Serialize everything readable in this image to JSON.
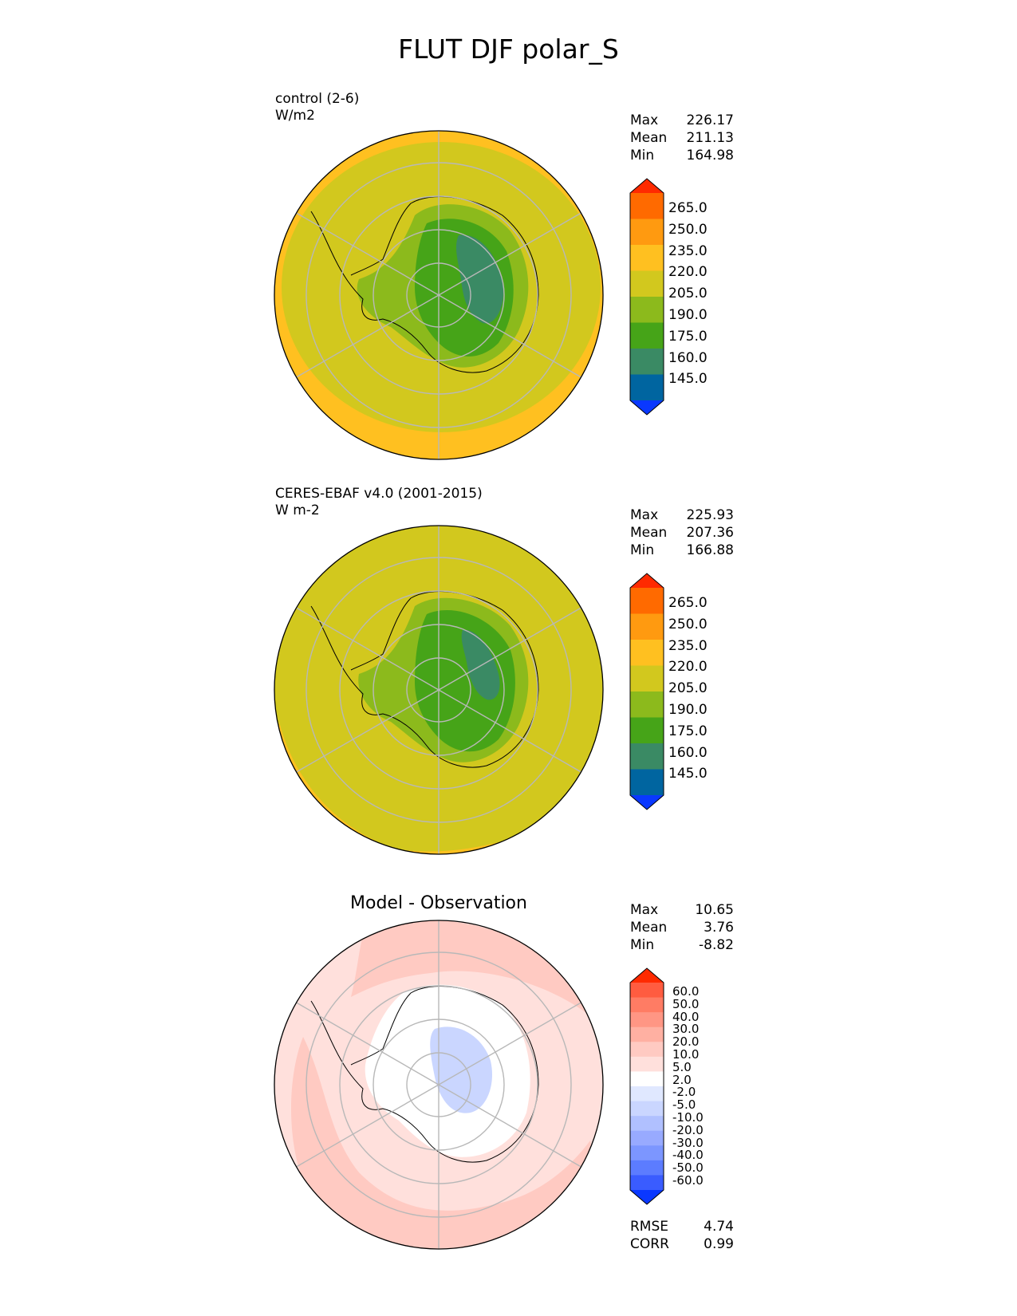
{
  "figure_title": "FLUT DJF polar_S",
  "colors": {
    "abs_levels": [
      "#0a38ff",
      "#0065a0",
      "#3a8a64",
      "#46a418",
      "#8cba1c",
      "#d2c81e",
      "#ffc020",
      "#ff9a10",
      "#ff6a00",
      "#ff2a00"
    ],
    "diff_levels": [
      "#0a38ff",
      "#3a5cff",
      "#5c7cff",
      "#7c96ff",
      "#98aaff",
      "#b0c0ff",
      "#cad6ff",
      "#e0e8ff",
      "#ffffff",
      "#ffe0dc",
      "#ffcac2",
      "#ffb0a2",
      "#ff9684",
      "#ff7c64",
      "#ff5c40",
      "#ff2a00"
    ]
  },
  "chart_data": [
    {
      "type": "heatmap",
      "projection": "polar_south",
      "title": "control (2-6)",
      "units": "W/m2",
      "stats": {
        "max_label": "Max",
        "max": "226.17",
        "mean_label": "Mean",
        "mean": "211.13",
        "min_label": "Min",
        "min": "164.98"
      },
      "levels": [
        145,
        160,
        175,
        190,
        205,
        220,
        235,
        250,
        265
      ],
      "colorbar_ticks": [
        "265.0",
        "250.0",
        "235.0",
        "220.0",
        "205.0",
        "190.0",
        "175.0",
        "160.0",
        "145.0"
      ]
    },
    {
      "type": "heatmap",
      "projection": "polar_south",
      "title": "CERES-EBAF v4.0 (2001-2015)",
      "units": "W m-2",
      "stats": {
        "max_label": "Max",
        "max": "225.93",
        "mean_label": "Mean",
        "mean": "207.36",
        "min_label": "Min",
        "min": "166.88"
      },
      "levels": [
        145,
        160,
        175,
        190,
        205,
        220,
        235,
        250,
        265
      ],
      "colorbar_ticks": [
        "265.0",
        "250.0",
        "235.0",
        "220.0",
        "205.0",
        "190.0",
        "175.0",
        "160.0",
        "145.0"
      ]
    },
    {
      "type": "heatmap",
      "projection": "polar_south",
      "title": "Model - Observation",
      "stats": {
        "max_label": "Max",
        "max": "10.65",
        "mean_label": "Mean",
        "mean": "3.76",
        "min_label": "Min",
        "min": "-8.82"
      },
      "levels": [
        -60,
        -50,
        -40,
        -30,
        -20,
        -10,
        -5,
        -2,
        2,
        5,
        10,
        20,
        30,
        40,
        50,
        60
      ],
      "colorbar_ticks": [
        "60.0",
        "50.0",
        "40.0",
        "30.0",
        "20.0",
        "10.0",
        "5.0",
        "2.0",
        "-2.0",
        "-5.0",
        "-10.0",
        "-20.0",
        "-30.0",
        "-40.0",
        "-50.0",
        "-60.0"
      ],
      "metrics": {
        "rmse_label": "RMSE",
        "rmse": "4.74",
        "corr_label": "CORR",
        "corr": "0.99"
      }
    }
  ]
}
